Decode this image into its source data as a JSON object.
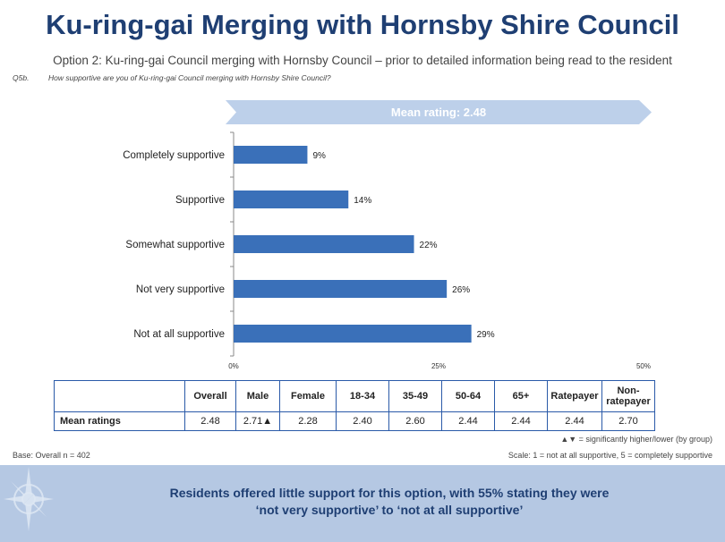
{
  "header": {
    "title": "Ku-ring-gai Merging with Hornsby Shire Council",
    "subtitle": "Option 2: Ku-ring-gai Council merging with Hornsby Council – prior to detailed information being read to the resident",
    "question_id": "Q5b.",
    "question": "How supportive are you of Ku-ring-gai Council merging with Hornsby Shire Council?"
  },
  "banner": {
    "text": "Mean rating: 2.48"
  },
  "colors": {
    "bar": "#3a70b9",
    "banner": "#bdd0ea",
    "accent": "#1f3f73"
  },
  "chart_data": {
    "type": "bar",
    "orientation": "horizontal",
    "categories": [
      "Completely supportive",
      "Supportive",
      "Somewhat supportive",
      "Not very supportive",
      "Not at all supportive"
    ],
    "values": [
      9,
      14,
      22,
      26,
      29
    ],
    "value_labels": [
      "9%",
      "14%",
      "22%",
      "26%",
      "29%"
    ],
    "xlim": [
      0,
      50
    ],
    "xticks": [
      0,
      25,
      50
    ],
    "xtick_labels": [
      "0%",
      "25%",
      "50%"
    ],
    "grid": false
  },
  "table": {
    "headers": [
      "Overall",
      "Male",
      "Female",
      "18-34",
      "35-49",
      "50-64",
      "65+",
      "Ratepayer",
      "Non-ratepayer"
    ],
    "header_lines": [
      [
        "Overall"
      ],
      [
        "Male"
      ],
      [
        "Female"
      ],
      [
        "18-34"
      ],
      [
        "35-49"
      ],
      [
        "50-64"
      ],
      [
        "65+"
      ],
      [
        "Ratepayer"
      ],
      [
        "Non-",
        "ratepayer"
      ]
    ],
    "row_label": "Mean ratings",
    "values": [
      "2.48",
      "2.71▲",
      "2.28",
      "2.40",
      "2.60",
      "2.44",
      "2.44",
      "2.44",
      "2.70"
    ]
  },
  "notes": {
    "significance": "▲▼ = significantly higher/lower (by group)",
    "base": "Base: Overall n = 402",
    "scale": "Scale: 1 = not at all supportive, 5 = completely supportive"
  },
  "footer": {
    "line1": "Residents offered little support for this option, with 55% stating they were",
    "line2": "‘not very supportive’ to ‘not at all supportive’",
    "icon": "compass-icon"
  }
}
